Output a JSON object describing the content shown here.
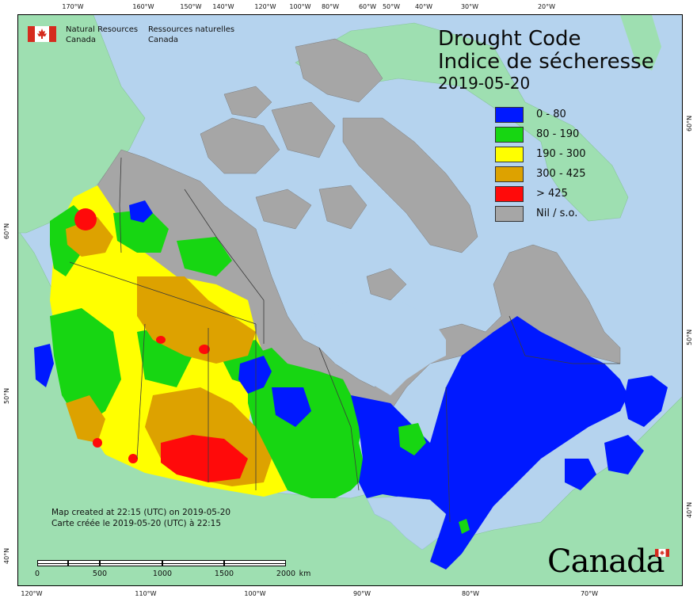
{
  "agency": {
    "en_line1": "Natural Resources",
    "en_line2": "Canada",
    "fr_line1": "Ressources naturelles",
    "fr_line2": "Canada"
  },
  "title": {
    "en": "Drought Code",
    "fr": "Indice de sécheresse",
    "date": "2019-05-20"
  },
  "legend": [
    {
      "label": "0 - 80",
      "color": "#0019ff"
    },
    {
      "label": "80 - 190",
      "color": "#17d612"
    },
    {
      "label": "190 - 300",
      "color": "#ffff00"
    },
    {
      "label": "300 - 425",
      "color": "#dda200"
    },
    {
      "label": "> 425",
      "color": "#ff0a0a"
    },
    {
      "label": "Nil / s.o.",
      "color": "#a6a6a6"
    }
  ],
  "colors": {
    "water": "#b5d3ee",
    "foreign_land": "#9edfb1",
    "no_data": "#a6a6a6"
  },
  "credits": {
    "line1": "Map created at 22:15 (UTC) on 2019-05-20",
    "line2": "Carte créée le 2019-05-20 (UTC) à 22:15"
  },
  "scale_bar": {
    "labels": [
      "0",
      "500",
      "1000",
      "1500",
      "2000"
    ],
    "unit": "km"
  },
  "wordmark": "Canada",
  "graticule": {
    "top": [
      "170°W",
      "160°W",
      "150°W",
      "140°W",
      "120°W",
      "100°W",
      "80°W",
      "60°W",
      "50°W",
      "40°W",
      "30°W",
      "20°W"
    ],
    "bottom": [
      "120°W",
      "110°W",
      "100°W",
      "90°W",
      "80°W",
      "70°W"
    ],
    "left": [
      "60°N",
      "50°N",
      "40°N"
    ],
    "right": [
      "60°N",
      "50°N",
      "40°N"
    ]
  }
}
